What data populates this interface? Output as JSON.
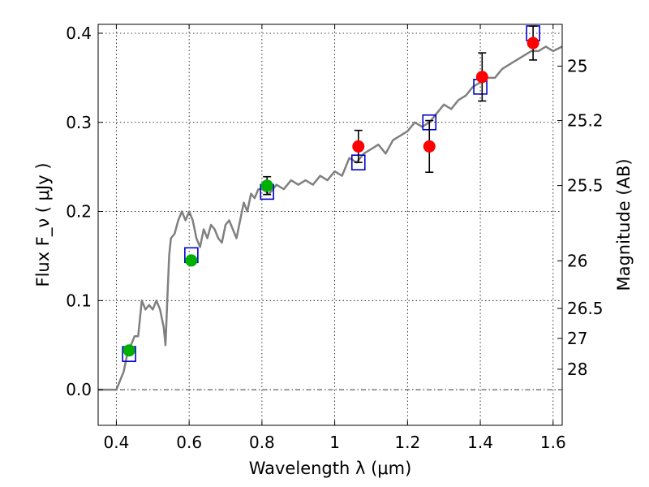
{
  "chart_data": {
    "type": "scatter",
    "xlabel": "Wavelength  λ (μm)",
    "ylabel_left": "Flux  F_ν  ( μJy )",
    "ylabel_right": "Magnitude (AB)",
    "xlim": [
      0.35,
      1.625
    ],
    "ylim": [
      -0.04,
      0.41
    ],
    "x_ticks": [
      "0.4",
      "0.6",
      "0.8",
      "1",
      "1.2",
      "1.4",
      "1.6"
    ],
    "x_tick_values": [
      0.4,
      0.6,
      0.8,
      1.0,
      1.2,
      1.4,
      1.6
    ],
    "y_ticks": [
      "0.0",
      "0.1",
      "0.2",
      "0.3",
      "0.4"
    ],
    "y_tick_values": [
      0.0,
      0.1,
      0.2,
      0.3,
      0.4
    ],
    "mag_ticks": [
      "25",
      "25.2",
      "25.5",
      "26",
      "26.5",
      "27",
      "28"
    ],
    "mag_tick_values": [
      25,
      25.2,
      25.5,
      26,
      26.5,
      27,
      28
    ],
    "grid": true,
    "zero_line": true,
    "colors": {
      "model": "#808080",
      "model_photometry": "#0000cc",
      "detection_optical": "#00b000",
      "detection_nir": "#ff0000",
      "errorbar": "#000000"
    },
    "model_spectrum": {
      "x": [
        0.35,
        0.4,
        0.42,
        0.43,
        0.44,
        0.45,
        0.46,
        0.47,
        0.48,
        0.49,
        0.5,
        0.51,
        0.52,
        0.53,
        0.535,
        0.54,
        0.545,
        0.55,
        0.56,
        0.57,
        0.58,
        0.59,
        0.6,
        0.61,
        0.62,
        0.63,
        0.64,
        0.65,
        0.66,
        0.67,
        0.68,
        0.69,
        0.7,
        0.71,
        0.72,
        0.73,
        0.74,
        0.75,
        0.76,
        0.77,
        0.78,
        0.79,
        0.8,
        0.82,
        0.84,
        0.86,
        0.88,
        0.9,
        0.92,
        0.94,
        0.96,
        0.98,
        1.0,
        1.02,
        1.04,
        1.06,
        1.08,
        1.1,
        1.12,
        1.14,
        1.16,
        1.18,
        1.2,
        1.22,
        1.24,
        1.26,
        1.28,
        1.3,
        1.32,
        1.34,
        1.36,
        1.38,
        1.4,
        1.42,
        1.44,
        1.46,
        1.48,
        1.5,
        1.52,
        1.54,
        1.56,
        1.58,
        1.6,
        1.625
      ],
      "y": [
        0.0,
        0.0,
        0.02,
        0.04,
        0.05,
        0.06,
        0.06,
        0.1,
        0.09,
        0.095,
        0.09,
        0.1,
        0.09,
        0.07,
        0.05,
        0.1,
        0.15,
        0.17,
        0.175,
        0.19,
        0.2,
        0.19,
        0.2,
        0.19,
        0.17,
        0.16,
        0.18,
        0.17,
        0.185,
        0.18,
        0.17,
        0.165,
        0.185,
        0.19,
        0.18,
        0.17,
        0.19,
        0.21,
        0.2,
        0.22,
        0.215,
        0.225,
        0.225,
        0.22,
        0.23,
        0.225,
        0.235,
        0.23,
        0.235,
        0.23,
        0.24,
        0.235,
        0.245,
        0.24,
        0.26,
        0.255,
        0.265,
        0.27,
        0.275,
        0.265,
        0.28,
        0.285,
        0.29,
        0.3,
        0.295,
        0.3,
        0.31,
        0.32,
        0.315,
        0.325,
        0.33,
        0.34,
        0.345,
        0.35,
        0.35,
        0.36,
        0.365,
        0.37,
        0.375,
        0.38,
        0.38,
        0.385,
        0.38,
        0.385
      ]
    },
    "model_photometry": {
      "x": [
        0.435,
        0.606,
        0.814,
        1.065,
        1.26,
        1.4,
        1.545
      ],
      "y": [
        0.04,
        0.151,
        0.222,
        0.255,
        0.3,
        0.34,
        0.4
      ]
    },
    "observed": [
      {
        "x": 0.435,
        "y": 0.044,
        "err": 0.0,
        "color": "green"
      },
      {
        "x": 0.606,
        "y": 0.145,
        "err": 0.0,
        "color": "green"
      },
      {
        "x": 0.814,
        "y": 0.229,
        "err": 0.01,
        "color": "green"
      },
      {
        "x": 1.065,
        "y": 0.273,
        "err": 0.018,
        "color": "red"
      },
      {
        "x": 1.26,
        "y": 0.273,
        "err": 0.029,
        "color": "red"
      },
      {
        "x": 1.405,
        "y": 0.351,
        "err": 0.027,
        "color": "red"
      },
      {
        "x": 1.545,
        "y": 0.389,
        "err": 0.019,
        "color": "red"
      }
    ]
  }
}
